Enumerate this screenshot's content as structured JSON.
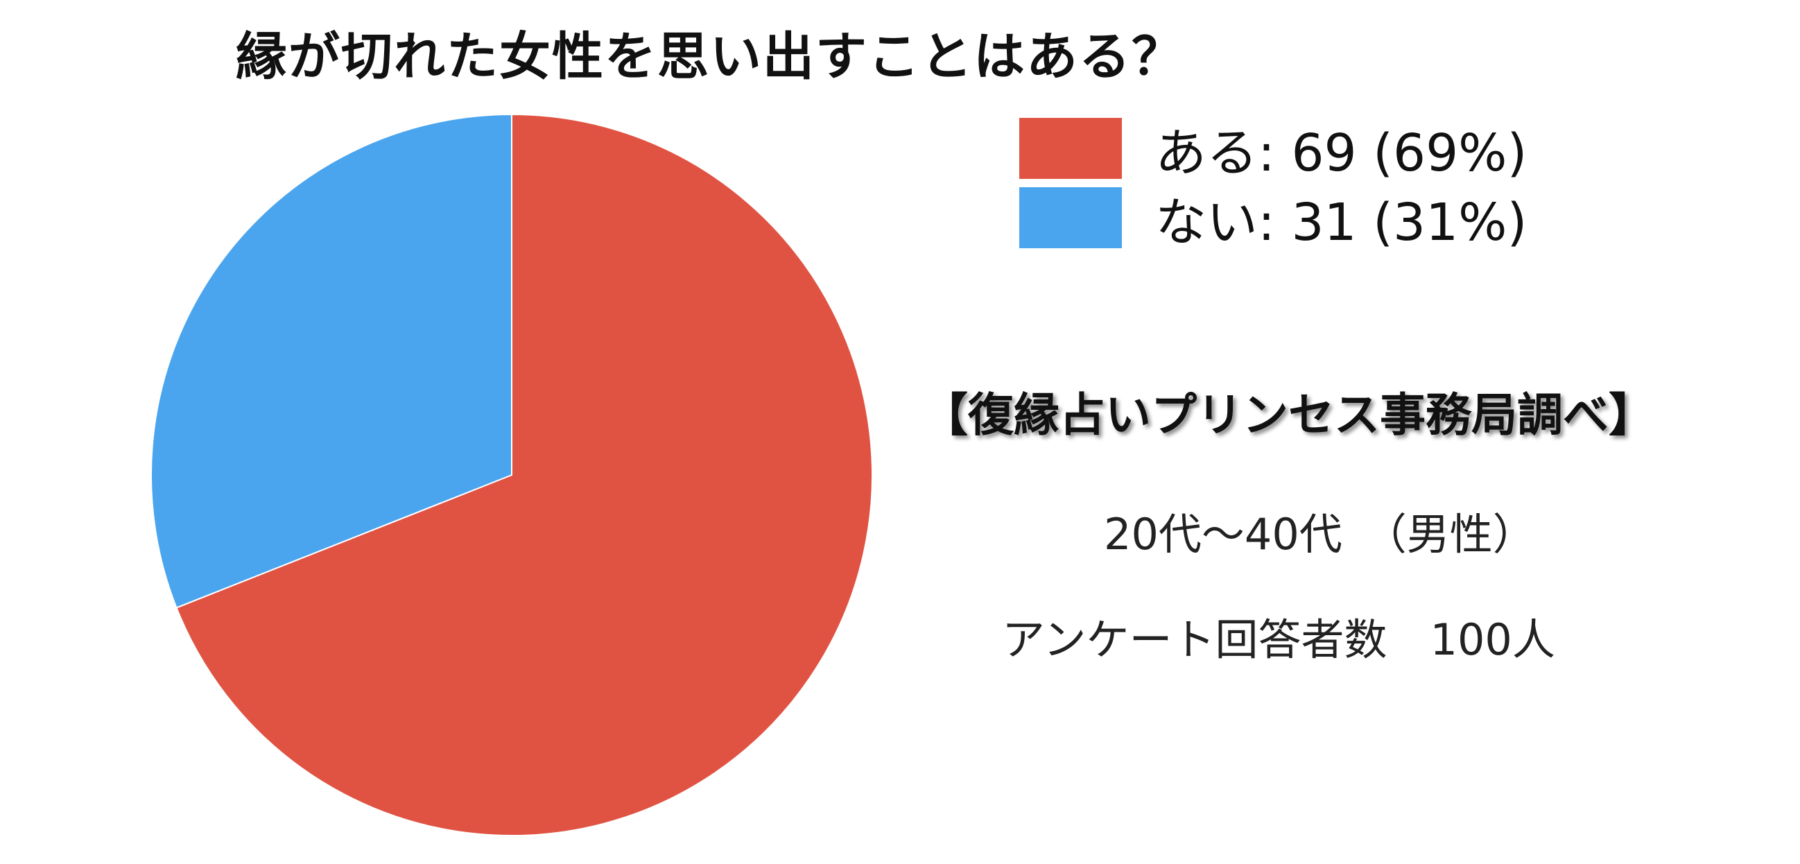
{
  "chart_data": {
    "type": "pie",
    "title": "縁が切れた女性を思い出すことはある？",
    "categories": [
      "ある",
      "ない"
    ],
    "values": [
      69,
      31
    ],
    "percents": [
      69,
      31
    ],
    "colors": [
      "#E05343",
      "#4AA5EE"
    ],
    "legend_labels": [
      "ある: 69 (69%)",
      "ない: 31 (31%)"
    ],
    "legend_position": "right"
  },
  "annotations": {
    "source": "【復縁占いプリンセス事務局調べ】",
    "age_group": "20代〜40代　（男性）",
    "respondents": "アンケート回答者数　100人"
  }
}
